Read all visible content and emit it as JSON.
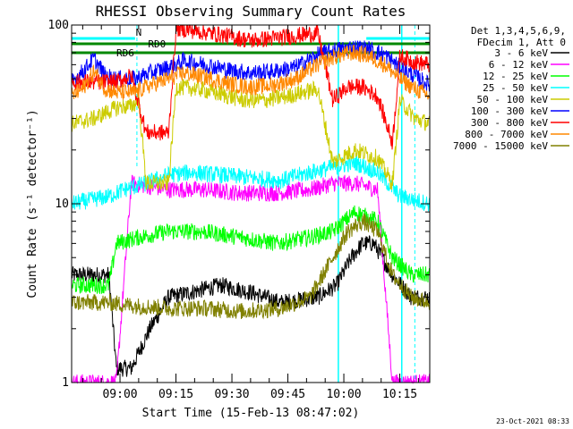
{
  "chart_data": {
    "type": "line",
    "title": "RHESSI Observing Summary Count Rates",
    "xlabel": "Start Time (15-Feb-13 08:47:02)",
    "ylabel": "Count Rate (s⁻¹ detector⁻¹)",
    "y_scale": "log",
    "ylim": [
      1,
      100
    ],
    "xlim_minutes_after_start": [
      0,
      96
    ],
    "y_ticks": [
      "1",
      "10",
      "100"
    ],
    "x_ticks": [
      "09:00",
      "09:15",
      "09:30",
      "09:45",
      "10:00",
      "10:15"
    ],
    "x_tick_minutes_after_start": [
      12.97,
      27.97,
      42.97,
      57.97,
      72.97,
      87.97
    ],
    "legend_header": [
      "Det 1,3,4,5,6,9,",
      "FDecim 1, Att 0"
    ],
    "legend_position": "right",
    "grid": false,
    "annotations": {
      "attenuator_labels": [
        "RD0",
        "RD6",
        "N"
      ],
      "datestamp": "23-Oct-2021 08:33"
    },
    "series": [
      {
        "name": "3 - 6 keV",
        "color": "#000000",
        "values": [
          [
            0,
            4
          ],
          [
            10,
            4
          ],
          [
            12,
            1.2
          ],
          [
            16,
            1.2
          ],
          [
            21,
            2
          ],
          [
            26,
            3
          ],
          [
            32,
            3.2
          ],
          [
            40,
            3.5
          ],
          [
            48,
            3.2
          ],
          [
            56,
            2.8
          ],
          [
            66,
            3
          ],
          [
            71,
            3.5
          ],
          [
            75,
            5
          ],
          [
            78,
            6
          ],
          [
            81,
            6
          ],
          [
            86,
            4
          ],
          [
            91,
            3
          ],
          [
            96,
            3
          ]
        ]
      },
      {
        "name": "6 - 12 keV",
        "color": "#ff00ff",
        "values": [
          [
            0,
            1
          ],
          [
            12,
            1
          ],
          [
            16,
            13
          ],
          [
            26,
            12
          ],
          [
            35,
            12
          ],
          [
            45,
            11.5
          ],
          [
            55,
            11.5
          ],
          [
            64,
            12
          ],
          [
            70,
            13
          ],
          [
            76,
            13
          ],
          [
            82,
            12
          ],
          [
            86,
            1
          ],
          [
            96,
            1
          ]
        ]
      },
      {
        "name": "12 - 25 keV",
        "color": "#00ff00",
        "values": [
          [
            0,
            3.5
          ],
          [
            10,
            3.5
          ],
          [
            12,
            6
          ],
          [
            18,
            6.5
          ],
          [
            26,
            7
          ],
          [
            35,
            7
          ],
          [
            45,
            6.5
          ],
          [
            55,
            6
          ],
          [
            64,
            6.5
          ],
          [
            70,
            7
          ],
          [
            76,
            9
          ],
          [
            82,
            8
          ],
          [
            86,
            5
          ],
          [
            91,
            4
          ],
          [
            96,
            4
          ]
        ]
      },
      {
        "name": "25 - 50 keV",
        "color": "#00ffff",
        "values": [
          [
            0,
            10
          ],
          [
            10,
            11
          ],
          [
            14,
            12
          ],
          [
            20,
            13
          ],
          [
            26,
            14.5
          ],
          [
            32,
            15
          ],
          [
            40,
            14.5
          ],
          [
            48,
            14
          ],
          [
            56,
            13.5
          ],
          [
            64,
            15
          ],
          [
            70,
            16
          ],
          [
            76,
            17
          ],
          [
            82,
            15
          ],
          [
            88,
            11
          ],
          [
            96,
            10
          ]
        ]
      },
      {
        "name": "50 - 100 keV",
        "color": "#cccc00",
        "values": [
          [
            0,
            28
          ],
          [
            6,
            30
          ],
          [
            10,
            33
          ],
          [
            13,
            35
          ],
          [
            16,
            35
          ],
          [
            18,
            38
          ],
          [
            20,
            13
          ],
          [
            26,
            13
          ],
          [
            28,
            45
          ],
          [
            34,
            44
          ],
          [
            40,
            41
          ],
          [
            46,
            38
          ],
          [
            52,
            38
          ],
          [
            58,
            40
          ],
          [
            66,
            44
          ],
          [
            70,
            17
          ],
          [
            76,
            20
          ],
          [
            82,
            18
          ],
          [
            86,
            13
          ],
          [
            88,
            38
          ],
          [
            92,
            30
          ],
          [
            96,
            28
          ]
        ]
      },
      {
        "name": "100 - 300 keV",
        "color": "#0000ff",
        "values": [
          [
            0,
            48
          ],
          [
            3,
            55
          ],
          [
            6,
            65
          ],
          [
            9,
            52
          ],
          [
            12,
            50
          ],
          [
            17,
            50
          ],
          [
            21,
            54
          ],
          [
            26,
            58
          ],
          [
            30,
            63
          ],
          [
            36,
            60
          ],
          [
            42,
            56
          ],
          [
            48,
            54
          ],
          [
            54,
            55
          ],
          [
            60,
            58
          ],
          [
            66,
            68
          ],
          [
            70,
            72
          ],
          [
            75,
            75
          ],
          [
            79,
            74
          ],
          [
            84,
            68
          ],
          [
            88,
            58
          ],
          [
            92,
            52
          ],
          [
            96,
            46
          ]
        ]
      },
      {
        "name": "300 - 800 keV",
        "color": "#ff0000",
        "values": [
          [
            0,
            48
          ],
          [
            3,
            48
          ],
          [
            7,
            48
          ],
          [
            10,
            48
          ],
          [
            12,
            48
          ],
          [
            16,
            52
          ],
          [
            20,
            25
          ],
          [
            26,
            25
          ],
          [
            28,
            96
          ],
          [
            34,
            92
          ],
          [
            40,
            88
          ],
          [
            48,
            82
          ],
          [
            56,
            85
          ],
          [
            66,
            90
          ],
          [
            70,
            38
          ],
          [
            74,
            45
          ],
          [
            78,
            45
          ],
          [
            82,
            40
          ],
          [
            86,
            22
          ],
          [
            88,
            67
          ],
          [
            92,
            62
          ],
          [
            96,
            60
          ]
        ]
      },
      {
        "name": "800 - 7000 keV",
        "color": "#ff8800",
        "values": [
          [
            0,
            40
          ],
          [
            3,
            44
          ],
          [
            6,
            55
          ],
          [
            9,
            44
          ],
          [
            12,
            42
          ],
          [
            17,
            42
          ],
          [
            21,
            46
          ],
          [
            26,
            50
          ],
          [
            30,
            54
          ],
          [
            36,
            51
          ],
          [
            42,
            47
          ],
          [
            48,
            45
          ],
          [
            54,
            46
          ],
          [
            60,
            50
          ],
          [
            66,
            60
          ],
          [
            70,
            66
          ],
          [
            75,
            70
          ],
          [
            79,
            68
          ],
          [
            84,
            60
          ],
          [
            88,
            50
          ],
          [
            92,
            44
          ],
          [
            96,
            40
          ]
        ]
      },
      {
        "name": "7000 - 15000 keV",
        "color": "#808000",
        "values": [
          [
            0,
            2.8
          ],
          [
            10,
            2.8
          ],
          [
            16,
            2.7
          ],
          [
            26,
            2.6
          ],
          [
            36,
            2.6
          ],
          [
            46,
            2.5
          ],
          [
            56,
            2.6
          ],
          [
            64,
            3
          ],
          [
            70,
            5
          ],
          [
            74,
            7
          ],
          [
            78,
            8
          ],
          [
            82,
            7
          ],
          [
            86,
            4
          ],
          [
            91,
            3
          ],
          [
            96,
            2.8
          ]
        ]
      }
    ]
  }
}
